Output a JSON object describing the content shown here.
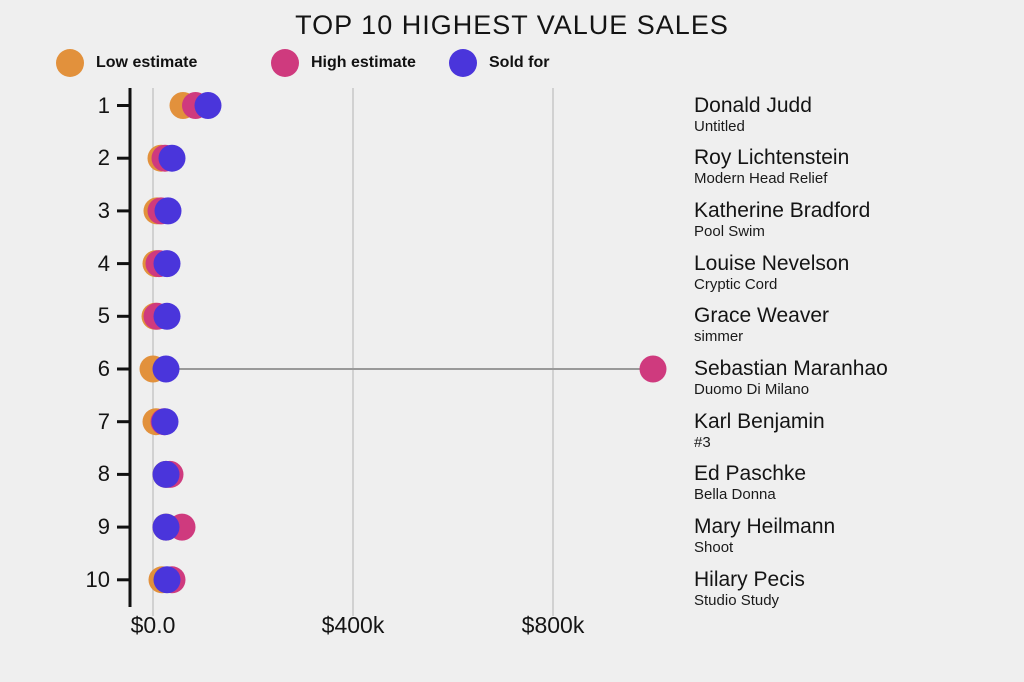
{
  "chart_data": {
    "type": "scatter",
    "title": "TOP 10 HIGHEST VALUE SALES",
    "xlabel": "",
    "ylabel": "",
    "unit": "USD thousands",
    "grid": true,
    "legend_position": "top-left",
    "xlim_k": [
      -45,
      1075
    ],
    "legend": [
      {
        "name": "Low estimate",
        "color": "#e2913c",
        "key": "low_estimate_k"
      },
      {
        "name": "High estimate",
        "color": "#cf3a7e",
        "key": "high_estimate_k"
      },
      {
        "name": "Sold for",
        "color": "#4a35db",
        "key": "sold_for_k"
      }
    ],
    "x_ticks": [
      {
        "label": "$0.0",
        "value_k": 0
      },
      {
        "label": "$400k",
        "value_k": 400
      },
      {
        "label": "$800k",
        "value_k": 800
      }
    ],
    "rows": [
      {
        "rank": "1",
        "artist": "Donald Judd",
        "work": "Untitled",
        "low_estimate_k": 60,
        "high_estimate_k": 85,
        "sold_for_k": 110
      },
      {
        "rank": "2",
        "artist": "Roy Lichtenstein",
        "work": "Modern Head Relief",
        "low_estimate_k": 16,
        "high_estimate_k": 24,
        "sold_for_k": 38
      },
      {
        "rank": "3",
        "artist": "Katherine Bradford",
        "work": "Pool Swim",
        "low_estimate_k": 8,
        "high_estimate_k": 16,
        "sold_for_k": 30
      },
      {
        "rank": "4",
        "artist": "Louise Nevelson",
        "work": "Cryptic Cord",
        "low_estimate_k": 6,
        "high_estimate_k": 12,
        "sold_for_k": 28
      },
      {
        "rank": "5",
        "artist": "Grace Weaver",
        "work": "simmer",
        "low_estimate_k": 4,
        "high_estimate_k": 8,
        "sold_for_k": 28
      },
      {
        "rank": "6",
        "artist": "Sebastian Maranhao",
        "work": "Duomo Di Milano",
        "low_estimate_k": 0,
        "high_estimate_k": 1000,
        "sold_for_k": 26
      },
      {
        "rank": "7",
        "artist": "Karl Benjamin",
        "work": "#3",
        "low_estimate_k": 6,
        "high_estimate_k": 22,
        "sold_for_k": 24
      },
      {
        "rank": "8",
        "artist": "Ed Paschke",
        "work": "Bella Donna",
        "low_estimate_k": 26,
        "high_estimate_k": 34,
        "sold_for_k": 26
      },
      {
        "rank": "9",
        "artist": "Mary Heilmann",
        "work": "Shoot",
        "low_estimate_k": 26,
        "high_estimate_k": 58,
        "sold_for_k": 26
      },
      {
        "rank": "10",
        "artist": "Hilary Pecis",
        "work": "Studio Study",
        "low_estimate_k": 18,
        "high_estimate_k": 38,
        "sold_for_k": 28
      }
    ],
    "colors": {
      "background": "#efefef",
      "gridline": "#c7c7c7",
      "axis": "#111111",
      "connector_line": "#999999",
      "text": "#141414"
    }
  }
}
